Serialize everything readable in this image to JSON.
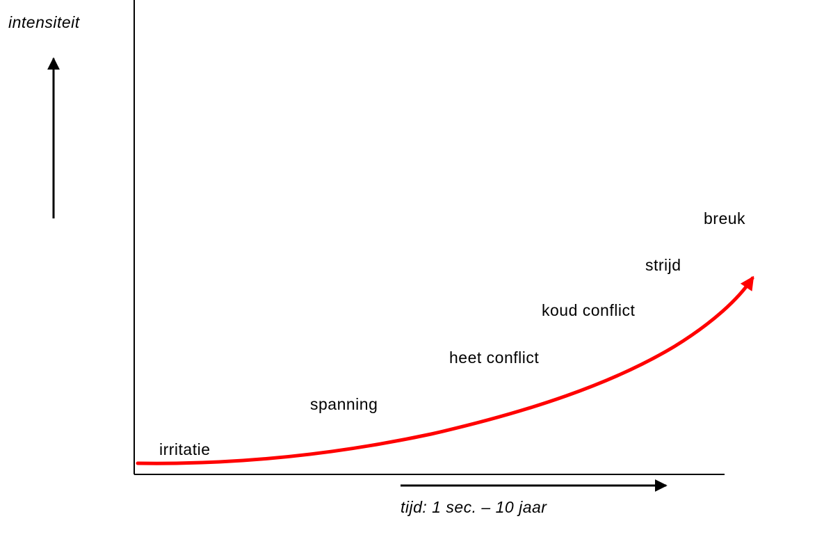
{
  "y_axis": {
    "label": "intensiteit"
  },
  "x_axis": {
    "label": "tijd: 1 sec. – 10 jaar"
  },
  "stages": [
    {
      "label": "irritatie"
    },
    {
      "label": "spanning"
    },
    {
      "label": "heet conflict"
    },
    {
      "label": "koud conflict"
    },
    {
      "label": "strijd"
    },
    {
      "label": "breuk"
    }
  ],
  "colors": {
    "curve": "#ff0000",
    "axes": "#000000",
    "background": "#ffffff"
  }
}
